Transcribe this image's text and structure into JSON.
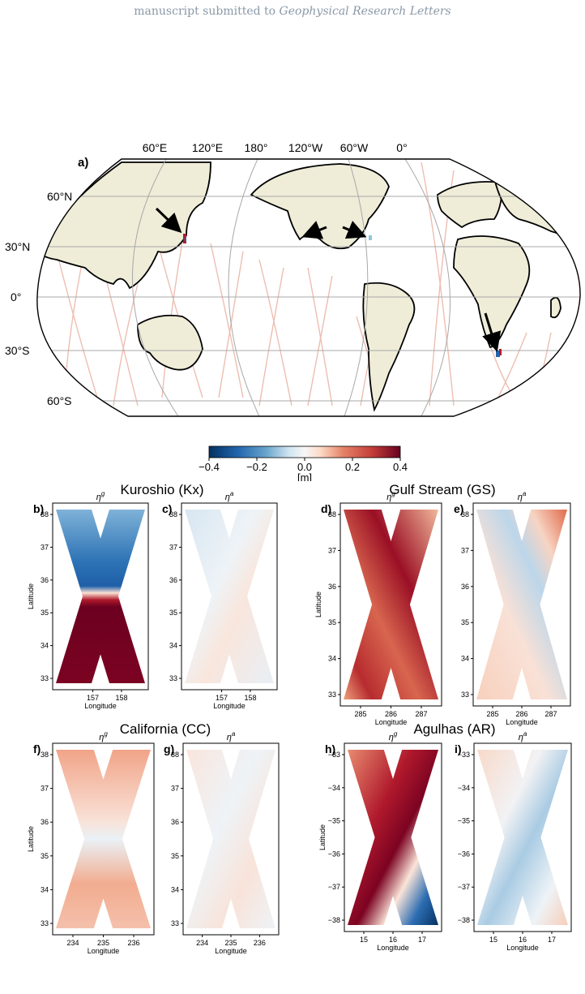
{
  "header": {
    "prefix": "manuscript submitted to ",
    "journal": "Geophysical Research Letters"
  },
  "map": {
    "panel_label": "a)",
    "top_lon_labels": [
      "60°E",
      "120°E",
      "180°",
      "120°W",
      "60°W",
      "0°"
    ],
    "left_lat_labels": [
      "60°N",
      "30°N",
      "0°",
      "30°S",
      "60°S"
    ],
    "land_color": "#efecd8",
    "arrows": 4
  },
  "colorbar": {
    "ticks": [
      "−0.4",
      "−0.2",
      "0.0",
      "0.2",
      "0.4"
    ],
    "unit": "[m]",
    "cmap": "RdBu_r",
    "range": [
      -0.4,
      0.4
    ]
  },
  "regions": [
    {
      "title": "Kuroshio (Kx)",
      "labels": [
        "b)",
        "c)"
      ],
      "sub": [
        "η^g",
        "η^a"
      ],
      "xticks": [
        "157",
        "158"
      ],
      "yticks": [
        "38",
        "37",
        "36",
        "35",
        "34",
        "33"
      ]
    },
    {
      "title": "Gulf Stream (GS)",
      "labels": [
        "d)",
        "e)"
      ],
      "sub": [
        "η^g",
        "η^a"
      ],
      "xticks": [
        "285",
        "286",
        "287"
      ],
      "yticks": [
        "38",
        "37",
        "36",
        "35",
        "34",
        "33"
      ]
    },
    {
      "title": "California (CC)",
      "labels": [
        "f)",
        "g)"
      ],
      "sub": [
        "η^g",
        "η^a"
      ],
      "xticks": [
        "234",
        "235",
        "236"
      ],
      "yticks": [
        "38",
        "37",
        "36",
        "35",
        "34",
        "33"
      ]
    },
    {
      "title": "Agulhas (AR)",
      "labels": [
        "h)",
        "i)"
      ],
      "sub": [
        "η^g",
        "η^a"
      ],
      "xticks": [
        "15",
        "16",
        "17"
      ],
      "yticks": [
        "−33",
        "−34",
        "−35",
        "−36",
        "−37",
        "−38"
      ]
    }
  ],
  "axis": {
    "xlabel": "Longitude",
    "ylabel": "Latitude"
  }
}
